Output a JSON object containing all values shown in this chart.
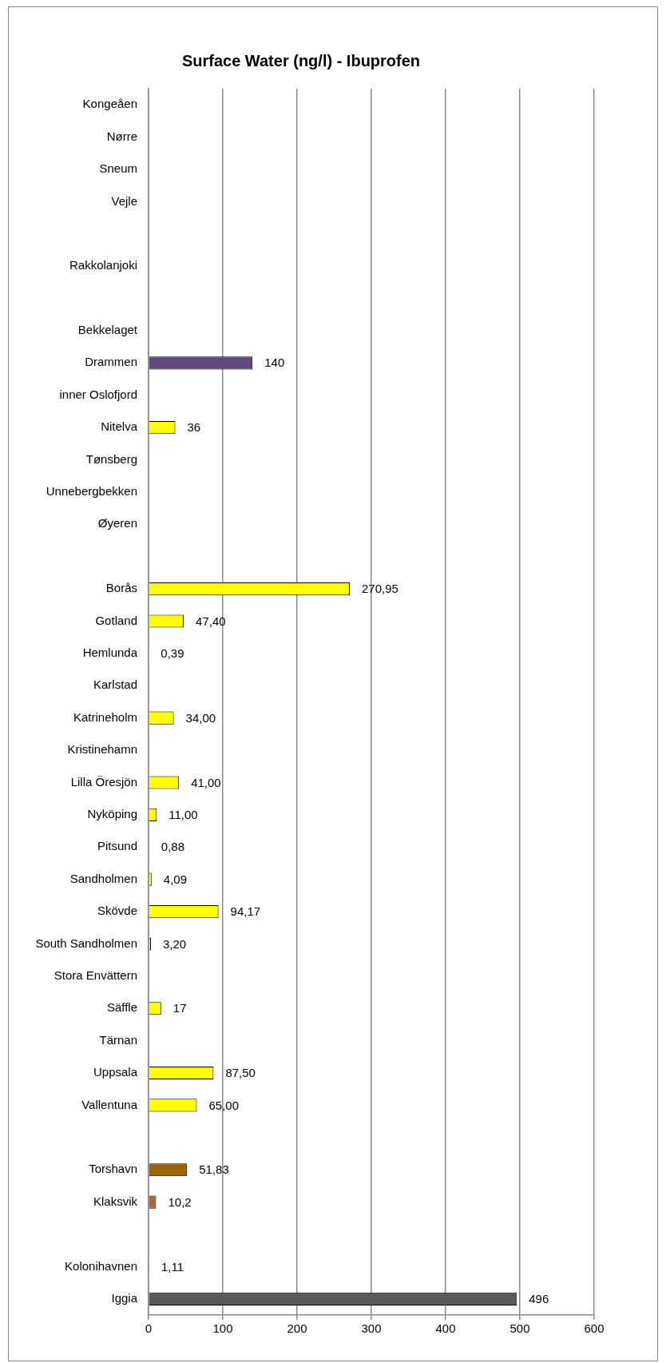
{
  "chart_data": {
    "type": "bar",
    "orientation": "horizontal",
    "title": "Surface Water (ng/l) - Ibuprofen",
    "categories": [
      "Kongeåen",
      "Nørre",
      "Sneum",
      "Vejle",
      null,
      "Rakkolanjoki",
      null,
      "Bekkelaget",
      "Drammen",
      "inner Oslofjord",
      "Nitelva",
      "Tønsberg",
      "Unnebergbekken",
      "Øyeren",
      null,
      "Borås",
      "Gotland",
      "Hemlunda",
      "Karlstad",
      "Katrineholm",
      "Kristinehamn",
      "Lilla Öresjön",
      "Nyköping",
      "Pitsund",
      "Sandholmen",
      "Skövde",
      "South Sandholmen",
      "Stora Envättern",
      "Säffle",
      "Tärnan",
      "Uppsala",
      "Vallentuna",
      null,
      "Torshavn",
      "Klaksvik",
      null,
      "Kolonihavnen",
      "Iggia"
    ],
    "values": [
      null,
      null,
      null,
      null,
      null,
      null,
      null,
      null,
      140,
      null,
      36,
      null,
      null,
      null,
      null,
      270.95,
      47.4,
      0.39,
      null,
      34,
      null,
      41,
      11,
      0.88,
      4.09,
      94.17,
      3.2,
      null,
      17,
      null,
      87.5,
      65,
      null,
      51.83,
      10.2,
      null,
      1.11,
      496
    ],
    "colors": [
      "#ffff00",
      "#ffff00",
      "#ffff00",
      "#ffff00",
      "#ffff00",
      "#ffff00",
      "#ffff00",
      "#ffff00",
      "#604a7b",
      "#ffff00",
      "#ffff00",
      "#ffff00",
      "#ffff00",
      "#ffff00",
      "#ffff00",
      "#ffff00",
      "#ffff00",
      "#d9d9d9",
      "#ffff00",
      "#ffff00",
      "#ffff00",
      "#ffff00",
      "#ffff00",
      "#d9d9d9",
      "#ffff00",
      "#ffff00",
      "#ffff00",
      "#ffff00",
      "#ffff00",
      "#ffff00",
      "#ffff00",
      "#ffff00",
      "#ffff00",
      "#996600",
      "#a5673f",
      "#ffff00",
      "#404040",
      "#595959"
    ],
    "value_labels": [
      null,
      null,
      null,
      null,
      null,
      null,
      null,
      null,
      "140",
      null,
      "36",
      null,
      null,
      null,
      null,
      "270,95",
      "47,40",
      "0,39",
      null,
      "34,00",
      null,
      "41,00",
      "11,00",
      "0,88",
      "4,09",
      "94,17",
      "3,20",
      null,
      "17",
      null,
      "87,50",
      "65,00",
      null,
      "51,83",
      "10,2",
      null,
      "1,11",
      "496"
    ],
    "xlim": [
      0,
      600
    ],
    "xticks": [
      0,
      100,
      200,
      300,
      400,
      500,
      600
    ],
    "grid": "x",
    "legend": false
  }
}
